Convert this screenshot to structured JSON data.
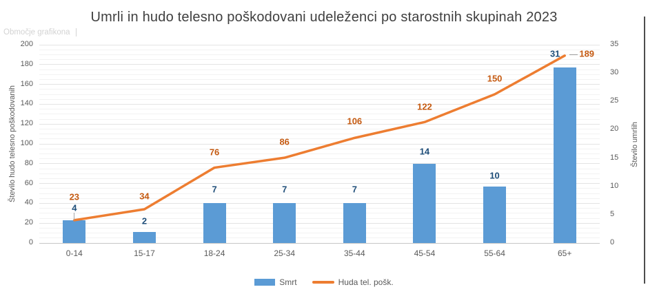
{
  "chart_area_label": "Območje grafikona",
  "title": "Umrli in hudo telesno poškodovani udeleženci po starostnih skupinah 2023",
  "colors": {
    "bar": "#5B9BD5",
    "line": "#ED7D31",
    "bar_label": "#1F4E79",
    "line_label": "#C55A11",
    "axis_text": "#595959"
  },
  "chart_data": {
    "type": "combo bar+line",
    "categories": [
      "0-14",
      "15-17",
      "18-24",
      "25-34",
      "35-44",
      "45-54",
      "55-64",
      "65+"
    ],
    "series": [
      {
        "name": "Smrt",
        "type": "bar",
        "axis": "right",
        "values": [
          4,
          2,
          7,
          7,
          7,
          14,
          10,
          31
        ]
      },
      {
        "name": "Huda tel. pošk.",
        "type": "line",
        "axis": "left",
        "values": [
          23,
          34,
          76,
          86,
          106,
          122,
          150,
          189
        ]
      }
    ],
    "left_axis": {
      "title": "Število hudo telesno poškodovanih",
      "min": 0,
      "max": 200,
      "tick_step": 20,
      "ticks": [
        0,
        20,
        40,
        60,
        80,
        100,
        120,
        140,
        160,
        180,
        200
      ]
    },
    "right_axis": {
      "title": "Število umrlih",
      "min": 0,
      "max": 35,
      "tick_step": 5,
      "ticks": [
        0,
        5,
        10,
        15,
        20,
        25,
        30,
        35
      ]
    },
    "grid": true,
    "data_labels": true,
    "legend_position": "bottom"
  }
}
